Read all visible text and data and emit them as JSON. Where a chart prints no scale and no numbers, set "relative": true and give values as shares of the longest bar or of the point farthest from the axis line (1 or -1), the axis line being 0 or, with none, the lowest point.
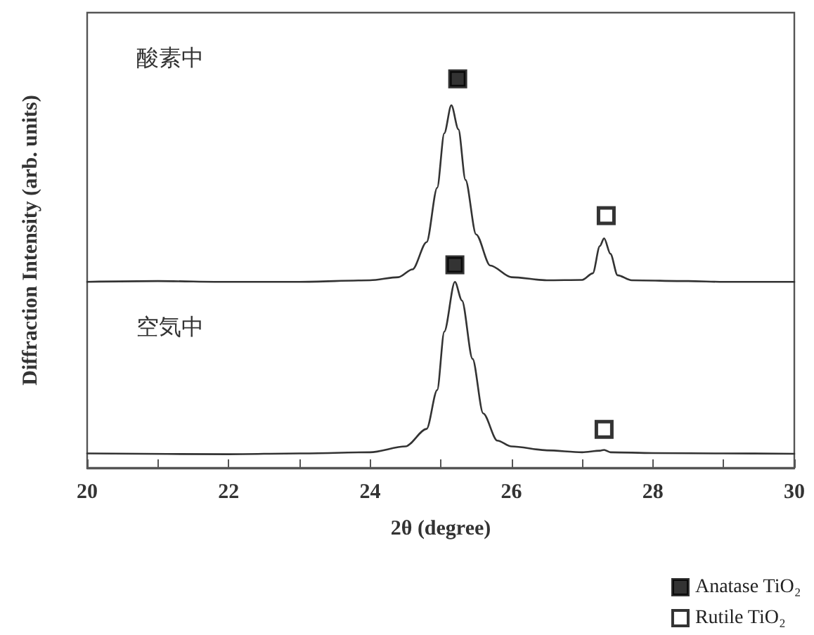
{
  "chart_data": {
    "type": "line",
    "relative": true,
    "xlabel": "2θ (degree)",
    "ylabel": "Diffraction Intensity (arb. units)",
    "xlim": [
      20,
      30
    ],
    "xticks": [
      20,
      {
        "value": 21,
        "label": null
      },
      22,
      {
        "value": 23,
        "label": null
      },
      24,
      {
        "value": 25,
        "label": null
      },
      26,
      {
        "value": 27,
        "label": null
      },
      28,
      {
        "value": 29,
        "label": null
      },
      30
    ],
    "grid": false,
    "legend": "bottom right",
    "annotations": [
      "酸素中",
      "空気中"
    ],
    "series": [
      {
        "color": "#333333",
        "x": [
          20,
          21,
          22,
          23,
          24,
          24.4,
          24.6,
          24.8,
          24.95,
          25.05,
          25.15,
          25.25,
          25.35,
          25.5,
          25.7,
          26,
          26.5,
          27,
          27.15,
          27.25,
          27.31,
          27.4,
          27.5,
          27.7,
          28.5,
          29,
          30
        ],
        "values": [
          0.478,
          0.48,
          0.478,
          0.478,
          0.482,
          0.49,
          0.51,
          0.58,
          0.72,
          0.86,
          0.932,
          0.87,
          0.74,
          0.6,
          0.52,
          0.49,
          0.482,
          0.483,
          0.5,
          0.57,
          0.59,
          0.55,
          0.495,
          0.482,
          0.48,
          0.478,
          0.478
        ]
      },
      {
        "color": "#333333",
        "x": [
          20,
          22,
          23,
          24,
          24.5,
          24.8,
          24.95,
          25.05,
          25.2,
          25.3,
          25.45,
          25.6,
          25.8,
          26,
          26.5,
          27,
          27.25,
          27.31,
          27.4,
          28,
          29,
          30
        ],
        "values": [
          0.037,
          0.035,
          0.037,
          0.04,
          0.055,
          0.1,
          0.2,
          0.35,
          0.478,
          0.43,
          0.28,
          0.14,
          0.07,
          0.055,
          0.045,
          0.04,
          0.044,
          0.046,
          0.04,
          0.038,
          0.037,
          0.036
        ]
      },
      {
        "type": "scatter",
        "name": "Anatase TiO₂",
        "color": "#000000",
        "marker": "square",
        "x": [
          25.24,
          25.2
        ],
        "values": [
          1.0,
          0.522
        ]
      },
      {
        "type": "scatter",
        "name": "Rutile TiO₂",
        "color": "#ffffff",
        "marker": "square",
        "x": [
          27.34,
          27.31
        ],
        "values": [
          0.648,
          0.099
        ]
      }
    ]
  }
}
